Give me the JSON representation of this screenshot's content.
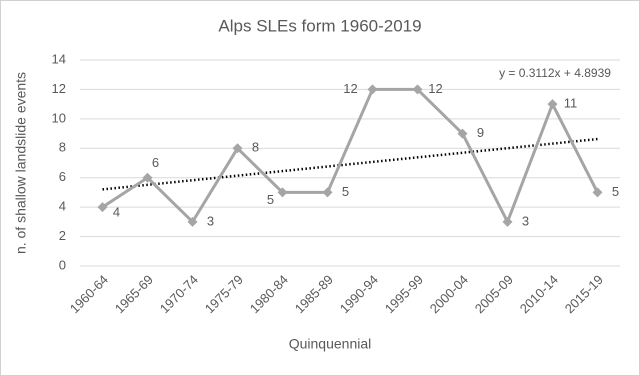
{
  "chart_data": {
    "type": "line",
    "title": "Alps SLEs form 1960-2019",
    "x_label": "Quinquennial",
    "y_label": "n. of shallow landslide events",
    "categories": [
      "1960-64",
      "1965-69",
      "1970-74",
      "1975-79",
      "1980-84",
      "1985-89",
      "1990-94",
      "1995-99",
      "2000-04",
      "2005-09",
      "2010-14",
      "2015-19"
    ],
    "series": [
      {
        "name": "SLEs",
        "color": "#a5a5a5",
        "values": [
          4,
          6,
          3,
          8,
          5,
          5,
          12,
          12,
          9,
          3,
          11,
          5
        ]
      }
    ],
    "ylim": [
      0,
      14
    ],
    "yticks": [
      0,
      2,
      4,
      6,
      8,
      10,
      12,
      14
    ],
    "grid": true,
    "data_labels": true,
    "legend": false,
    "trendline": {
      "slope": 0.3112,
      "intercept": 4.8939,
      "label": "y = 0.3112x + 4.8939",
      "color": "#000000"
    }
  }
}
